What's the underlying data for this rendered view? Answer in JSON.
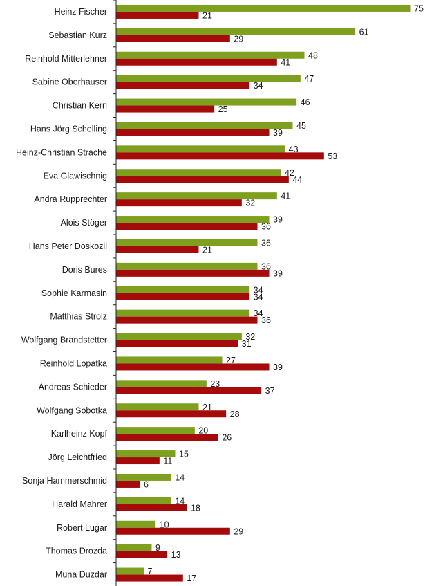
{
  "chart_data": {
    "type": "bar",
    "orientation": "horizontal",
    "categories": [
      "Heinz Fischer",
      "Sebastian Kurz",
      "Reinhold Mitterlehner",
      "Sabine Oberhauser",
      "Christian Kern",
      "Hans Jörg Schelling",
      "Heinz-Christian Strache",
      "Eva Glawischnig",
      "Andrä Rupprechter",
      "Alois Stöger",
      "Hans Peter Doskozil",
      "Doris Bures",
      "Sophie Karmasin",
      "Matthias Strolz",
      "Wolfgang Brandstetter",
      "Reinhold Lopatka",
      "Andreas Schieder",
      "Wolfgang Sobotka",
      "Karlheinz Kopf",
      "Jörg Leichtfried",
      "Sonja Hammerschmid",
      "Harald Mahrer",
      "Robert Lugar",
      "Thomas Drozda",
      "Muna Duzdar"
    ],
    "series": [
      {
        "color": "#7f9f1f",
        "values": [
          75,
          61,
          48,
          47,
          46,
          45,
          43,
          42,
          41,
          39,
          36,
          36,
          34,
          34,
          32,
          27,
          23,
          21,
          20,
          15,
          14,
          14,
          10,
          9,
          7
        ]
      },
      {
        "color": "#a50b0b",
        "values": [
          21,
          29,
          41,
          34,
          25,
          39,
          53,
          44,
          32,
          36,
          21,
          39,
          34,
          36,
          31,
          39,
          37,
          28,
          26,
          11,
          6,
          18,
          29,
          13,
          17
        ]
      }
    ],
    "xlim": [
      0,
      75
    ],
    "grid": false,
    "legend": "none",
    "title": "",
    "xlabel": "",
    "ylabel": ""
  }
}
